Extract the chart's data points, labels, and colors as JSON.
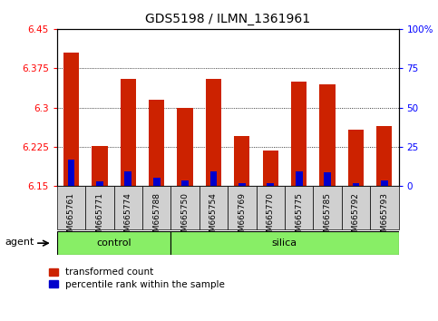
{
  "title": "GDS5198 / ILMN_1361961",
  "samples": [
    "GSM665761",
    "GSM665771",
    "GSM665774",
    "GSM665788",
    "GSM665750",
    "GSM665754",
    "GSM665769",
    "GSM665770",
    "GSM665775",
    "GSM665785",
    "GSM665792",
    "GSM665793"
  ],
  "n_control": 4,
  "n_silica": 8,
  "red_values": [
    6.405,
    6.227,
    6.355,
    6.315,
    6.3,
    6.355,
    6.245,
    6.218,
    6.35,
    6.345,
    6.258,
    6.265
  ],
  "blue_values": [
    6.197,
    6.157,
    6.175,
    6.163,
    6.158,
    6.175,
    6.153,
    6.152,
    6.175,
    6.173,
    6.153,
    6.158
  ],
  "ymin": 6.15,
  "ymax": 6.45,
  "y_ticks_left": [
    6.15,
    6.225,
    6.3,
    6.375,
    6.45
  ],
  "y_ticks_right_pct": [
    0,
    25,
    50,
    75,
    100
  ],
  "bar_color_red": "#cc2200",
  "bar_color_blue": "#0000cc",
  "green_color": "#88ee66",
  "gray_color": "#d0d0d0",
  "legend_red": "transformed count",
  "legend_blue": "percentile rank within the sample",
  "bar_width": 0.55,
  "figsize": [
    4.83,
    3.54
  ],
  "dpi": 100
}
